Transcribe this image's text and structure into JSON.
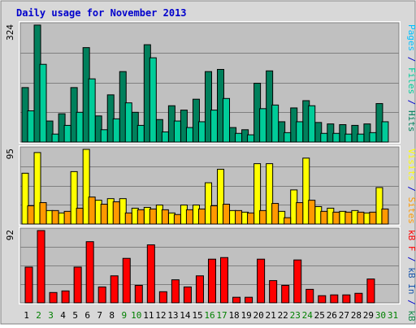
{
  "page": {
    "title": "Daily usage for November 2013"
  },
  "colors": {
    "title": "#0000cc",
    "pages": "#00c0ff",
    "files": "#00cc99",
    "hits": "#00805c",
    "visits": "#ffff00",
    "sites": "#ff9900",
    "kb_in": "#1a55aa",
    "kb_out": "#1a8a4a",
    "kb_f": "#ff0000",
    "weekend_label": "#008000",
    "weekday_label": "#000000",
    "panel_bg": "#c0c0c0",
    "outer_bg": "#d8d8d8"
  },
  "chart_data": [
    {
      "type": "bar",
      "panel": "top",
      "ymax_label": "324",
      "ylim": [
        0,
        324
      ],
      "right_labels": [
        {
          "text": "Pages",
          "colorKey": "pages"
        },
        {
          "text": " / ",
          "colorKey": "title"
        },
        {
          "text": "Files",
          "colorKey": "files"
        },
        {
          "text": " / ",
          "colorKey": "title"
        },
        {
          "text": "Hits",
          "colorKey": "hits"
        }
      ],
      "series": [
        {
          "name": "Hits",
          "colorKey": "hits",
          "values": [
            150,
            322,
            58,
            78,
            150,
            260,
            72,
            130,
            194,
            82,
            268,
            62,
            100,
            88,
            118,
            194,
            200,
            40,
            34,
            162,
            196,
            56,
            94,
            114,
            54,
            50,
            48,
            46,
            50,
            106,
            0
          ]
        },
        {
          "name": "Files",
          "colorKey": "files",
          "values": [
            86,
            214,
            22,
            46,
            82,
            174,
            34,
            64,
            108,
            46,
            232,
            28,
            58,
            40,
            56,
            88,
            120,
            24,
            20,
            92,
            102,
            26,
            56,
            100,
            24,
            24,
            22,
            22,
            26,
            56,
            0
          ]
        }
      ]
    },
    {
      "type": "bar",
      "panel": "middle",
      "ymax_label": "95",
      "ylim": [
        0,
        95
      ],
      "right_labels": [
        {
          "text": "Visits",
          "colorKey": "visits"
        },
        {
          "text": " / ",
          "colorKey": "title"
        },
        {
          "text": "Sites",
          "colorKey": "sites"
        }
      ],
      "series": [
        {
          "name": "Visits",
          "colorKey": "visits",
          "values": [
            64,
            90,
            17,
            14,
            66,
            94,
            30,
            32,
            32,
            20,
            21,
            24,
            14,
            24,
            24,
            52,
            69,
            17,
            15,
            76,
            76,
            16,
            43,
            83,
            22,
            20,
            16,
            17,
            14,
            46,
            0
          ]
        },
        {
          "name": "Sites",
          "colorKey": "sites",
          "values": [
            23,
            27,
            17,
            16,
            20,
            34,
            25,
            28,
            14,
            18,
            19,
            18,
            12,
            18,
            19,
            23,
            25,
            17,
            14,
            17,
            26,
            8,
            27,
            30,
            16,
            15,
            15,
            15,
            15,
            19,
            0
          ]
        }
      ]
    },
    {
      "type": "bar",
      "panel": "bottom",
      "ymax_label": "92",
      "ylim": [
        0,
        92
      ],
      "right_labels": [
        {
          "text": "kB F",
          "colorKey": "kb_f"
        },
        {
          "text": " / ",
          "colorKey": "title"
        },
        {
          "text": "kB In",
          "colorKey": "kb_in"
        },
        {
          "text": " / ",
          "colorKey": "title"
        },
        {
          "text": "kB Out",
          "colorKey": "kb_out"
        }
      ],
      "series": [
        {
          "name": "kB F",
          "colorKey": "kb_f",
          "values": [
            45,
            91,
            13,
            15,
            45,
            77,
            20,
            34,
            56,
            22,
            73,
            14,
            29,
            20,
            34,
            55,
            57,
            7,
            7,
            55,
            28,
            22,
            54,
            17,
            9,
            10,
            10,
            12,
            30,
            0,
            0
          ]
        }
      ]
    }
  ],
  "x_axis": {
    "days": [
      "1",
      "2",
      "3",
      "4",
      "5",
      "6",
      "7",
      "8",
      "9",
      "10",
      "11",
      "12",
      "13",
      "14",
      "15",
      "16",
      "17",
      "18",
      "19",
      "20",
      "21",
      "22",
      "23",
      "24",
      "25",
      "26",
      "27",
      "28",
      "29",
      "30",
      "31"
    ],
    "weekend_days": [
      "2",
      "3",
      "9",
      "10",
      "16",
      "17",
      "23",
      "24",
      "30",
      "31"
    ]
  }
}
